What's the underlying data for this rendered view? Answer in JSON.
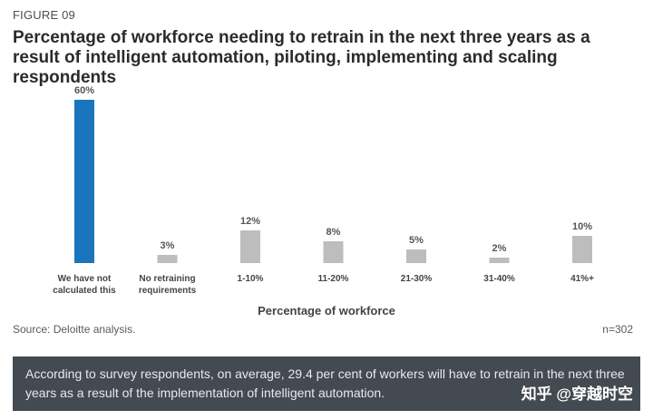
{
  "figure_label": "FIGURE 09",
  "title": "Percentage of workforce needing to retrain in the next three years as a result of intelligent automation, piloting, implementing and scaling respondents",
  "source": "Source: Deloitte analysis.",
  "n_label": "n=302",
  "footer_text": "According to survey respondents, on average, 29.4 per cent of workers will have to retrain in the next three years as a result of the implementation of intelligent automation.",
  "watermark": "知乎 @穿越时空",
  "colors": {
    "highlight": "#1a75bc",
    "bar": "#bdbdbd"
  },
  "chart_data": {
    "type": "bar",
    "xlabel": "Percentage of workforce",
    "categories": [
      [
        "We have not",
        "calculated this"
      ],
      [
        "No retraining",
        "requirements"
      ],
      [
        "1-10%"
      ],
      [
        "11-20%"
      ],
      [
        "21-30%"
      ],
      [
        "31-40%"
      ],
      [
        "41%+"
      ]
    ],
    "values": [
      60,
      3,
      12,
      8,
      5,
      2,
      10
    ],
    "value_labels": [
      "60%",
      "3%",
      "12%",
      "8%",
      "5%",
      "2%",
      "10%"
    ],
    "highlight_index": 0,
    "ylim": [
      0,
      60
    ],
    "grid": false,
    "legend": "none"
  }
}
